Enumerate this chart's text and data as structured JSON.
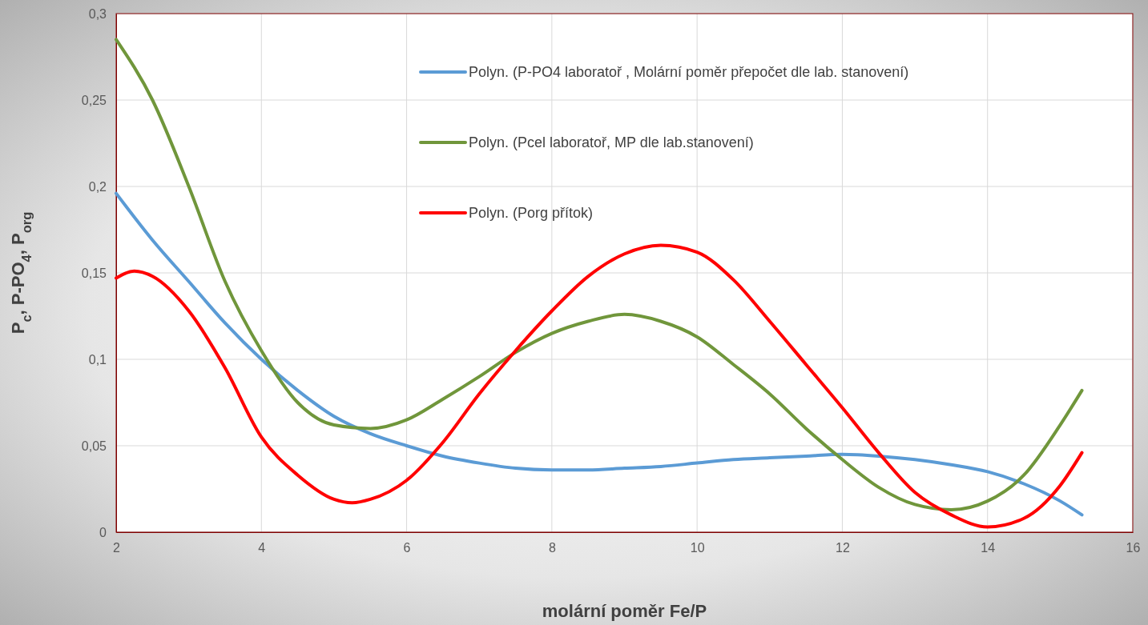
{
  "chart_data": {
    "type": "line",
    "xlabel": "molární poměr Fe/P",
    "ylabel": "P$_{c}$, P-PO$_{4}$, P$_{org}$",
    "xlim": [
      2,
      16
    ],
    "xticks": [
      2,
      4,
      6,
      8,
      10,
      12,
      14,
      16
    ],
    "ylim": [
      0,
      0.3
    ],
    "yticks": [
      {
        "value": 0,
        "label": "0"
      },
      {
        "value": 0.05,
        "label": "0,05"
      },
      {
        "value": 0.1,
        "label": "0,1"
      },
      {
        "value": 0.15,
        "label": "0,15"
      },
      {
        "value": 0.2,
        "label": "0,2"
      },
      {
        "value": 0.25,
        "label": "0,25"
      },
      {
        "value": 0.3,
        "label": "0,3"
      }
    ],
    "grid": true,
    "legend": "top right",
    "marker": "none",
    "line_style": "solid",
    "series": [
      {
        "name": "Polyn. (P-PO4 laboratoř , Molární poměr přepočet dle lab. stanovení)",
        "color": "#5b9bd5",
        "x": [
          2,
          2.5,
          3,
          3.5,
          4,
          4.5,
          5,
          5.5,
          6,
          6.5,
          7,
          7.5,
          8,
          8.5,
          9,
          9.5,
          10,
          10.5,
          11,
          11.5,
          12,
          12.5,
          13,
          13.5,
          14,
          14.5,
          15,
          15.3
        ],
        "values": [
          0.196,
          0.169,
          0.145,
          0.121,
          0.1,
          0.082,
          0.067,
          0.057,
          0.05,
          0.044,
          0.04,
          0.037,
          0.036,
          0.036,
          0.037,
          0.038,
          0.04,
          0.042,
          0.043,
          0.044,
          0.045,
          0.044,
          0.042,
          0.039,
          0.035,
          0.028,
          0.018,
          0.01
        ]
      },
      {
        "name": "Polyn. (Pcel laboratoř, MP dle lab.stanovení)",
        "color": "#70963b",
        "x": [
          2,
          2.5,
          3,
          3.5,
          4,
          4.5,
          5,
          5.5,
          6,
          6.5,
          7,
          7.5,
          8,
          8.5,
          9,
          9.5,
          10,
          10.5,
          11,
          11.5,
          12,
          12.5,
          13,
          13.5,
          14,
          14.5,
          15,
          15.3
        ],
        "values": [
          0.285,
          0.25,
          0.2,
          0.145,
          0.105,
          0.075,
          0.062,
          0.06,
          0.065,
          0.077,
          0.09,
          0.104,
          0.115,
          0.122,
          0.126,
          0.122,
          0.113,
          0.097,
          0.08,
          0.06,
          0.042,
          0.026,
          0.016,
          0.013,
          0.018,
          0.033,
          0.062,
          0.082
        ]
      },
      {
        "name": "Polyn. (Porg přítok)",
        "color": "#ff0000",
        "x": [
          2,
          2.25,
          2.5,
          3,
          3.5,
          4,
          4.5,
          5,
          5.25,
          5.5,
          6,
          6.5,
          7,
          7.5,
          8,
          8.5,
          9,
          9.5,
          10,
          10.5,
          11,
          11.5,
          12,
          12.5,
          13,
          13.5,
          14,
          14.5,
          15,
          15.3
        ],
        "values": [
          0.147,
          0.151,
          0.148,
          0.128,
          0.095,
          0.055,
          0.033,
          0.019,
          0.017,
          0.019,
          0.03,
          0.052,
          0.08,
          0.105,
          0.128,
          0.148,
          0.161,
          0.166,
          0.162,
          0.146,
          0.122,
          0.097,
          0.072,
          0.046,
          0.023,
          0.01,
          0.003,
          0.008,
          0.027,
          0.046
        ]
      }
    ]
  }
}
